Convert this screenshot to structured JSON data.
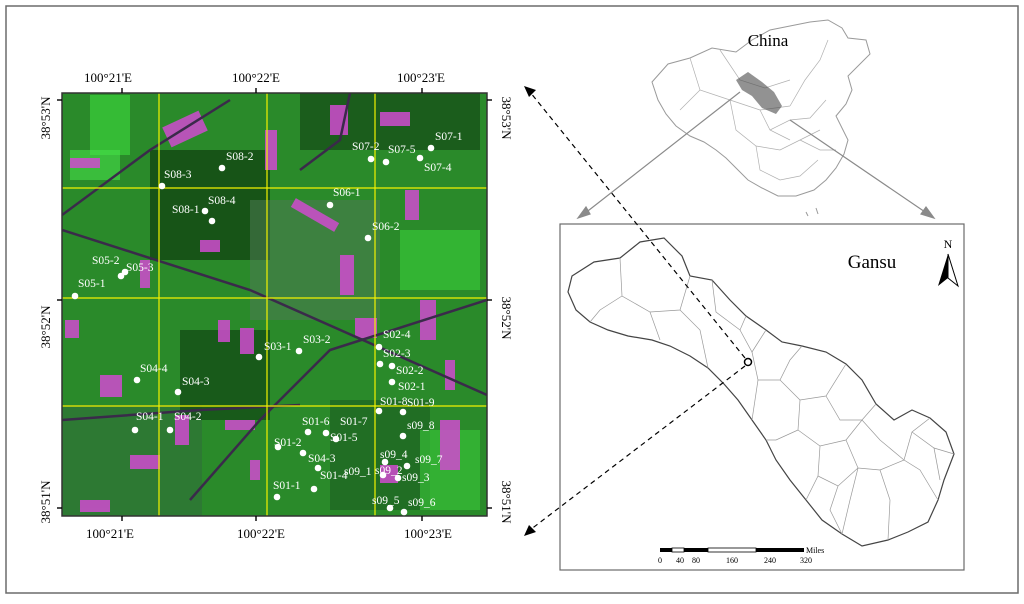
{
  "colors": {
    "frame": "#6b6b6b",
    "grid_line": "#f2f200",
    "vegetation": "#1f8c1f",
    "pink_fields": "#d04bd0",
    "sample_point": "#ffffff",
    "outline": "#8a8a8a"
  },
  "satellite_map": {
    "lon_labels_top": [
      "100°21'E",
      "100°22'E",
      "100°23'E"
    ],
    "lon_labels_bottom": [
      "100°21'E",
      "100°22'E",
      "100°23'E"
    ],
    "lat_labels_left": [
      "38°53'N",
      "38°52'N",
      "38°51'N"
    ],
    "lat_labels_right": [
      "38°53'N",
      "38°52'N",
      "38°51'N"
    ],
    "sample_labels": [
      "S08-2",
      "S08-3",
      "S08-4",
      "S08-1",
      "S07-2",
      "S07-5",
      "S07-1",
      "S07-4",
      "S06-1",
      "S06-2",
      "S05-2",
      "S05-3",
      "S05-1",
      "S03-1",
      "S03-2",
      "S02-4",
      "S02-3",
      "S02-2",
      "S02-1",
      "S04-4",
      "S04-3",
      "S04-1",
      "S04-2",
      "S01-8",
      "S01-9",
      "S01-6",
      "S01-7",
      "S01-5",
      "s09_8",
      "S01-2",
      "S04-3",
      "s09_4",
      "s09_7",
      "S01-4",
      "s09_2",
      "s09_3",
      "S01-1",
      "s09_1",
      "s09_5",
      "s09_6"
    ]
  },
  "locator": {
    "china_label": "China",
    "province_label": "Gansu",
    "north_label": "N",
    "scale_unit": "Miles",
    "scale_ticks": [
      "0",
      "40",
      "80",
      "160",
      "240",
      "320"
    ]
  }
}
